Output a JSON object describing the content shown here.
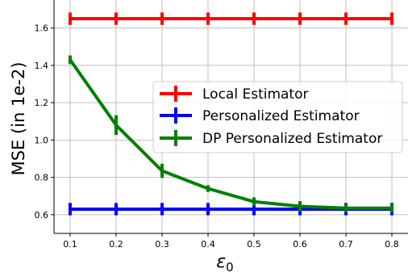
{
  "chart_data": {
    "type": "line",
    "xlabel": "ε",
    "xlabel_sub": "0",
    "ylabel": "MSE (in 1e-2)",
    "x": [
      0.1,
      0.2,
      0.3,
      0.4,
      0.5,
      0.6,
      0.7,
      0.8
    ],
    "xlim": [
      0.065,
      0.835
    ],
    "ylim": [
      0.5,
      1.75
    ],
    "xticks": [
      "0.1",
      "0.2",
      "0.3",
      "0.4",
      "0.5",
      "0.6",
      "0.7",
      "0.8"
    ],
    "yticks": [
      "0.6",
      "0.8",
      "1.0",
      "1.2",
      "1.4",
      "1.6"
    ],
    "grid": true,
    "legend_position": "center-right",
    "series": [
      {
        "name": "Local Estimator",
        "color": "#ff0000",
        "values": [
          1.65,
          1.65,
          1.65,
          1.65,
          1.65,
          1.65,
          1.65,
          1.65
        ],
        "errors": [
          0.02,
          0.02,
          0.02,
          0.02,
          0.02,
          0.02,
          0.02,
          0.02
        ]
      },
      {
        "name": "Personalized Estimator",
        "color": "#0000ff",
        "values": [
          0.63,
          0.63,
          0.63,
          0.63,
          0.63,
          0.63,
          0.63,
          0.63
        ],
        "errors": [
          0.02,
          0.02,
          0.02,
          0.02,
          0.02,
          0.02,
          0.02,
          0.02
        ]
      },
      {
        "name": "DP Personalized Estimator",
        "color": "#008000",
        "values": [
          1.43,
          1.08,
          0.835,
          0.74,
          0.67,
          0.645,
          0.635,
          0.635
        ],
        "errors": [
          0.01,
          0.04,
          0.025,
          0.005,
          0.01,
          0.015,
          0.01,
          0.01
        ]
      }
    ]
  }
}
